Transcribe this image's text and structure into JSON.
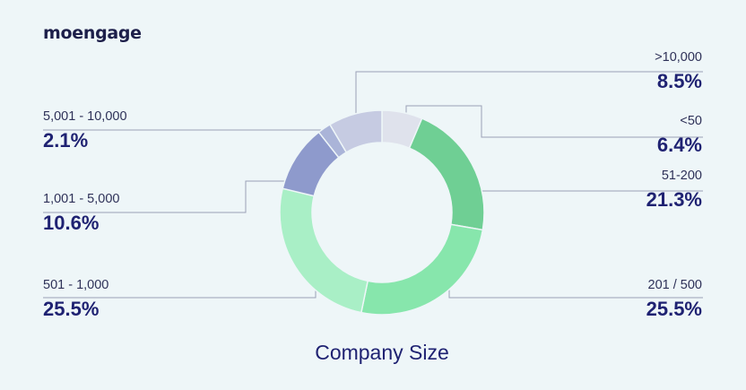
{
  "brand": {
    "logo_text": "moengage"
  },
  "chart_data": {
    "type": "pie",
    "variant": "donut",
    "title": "Company Size",
    "start": "12 o'clock, clockwise",
    "slices": [
      {
        "label": "<50",
        "value": 6.4,
        "value_label": "6.4%",
        "color": "#dfe2ec"
      },
      {
        "label": "51-200",
        "value": 21.3,
        "value_label": "21.3%",
        "color": "#6fcf94"
      },
      {
        "label": "201 / 500",
        "value": 25.5,
        "value_label": "25.5%",
        "color": "#87e6ac"
      },
      {
        "label": "501 - 1,000",
        "value": 25.5,
        "value_label": "25.5%",
        "color": "#a9efc6"
      },
      {
        "label": "1,001 - 5,000",
        "value": 10.6,
        "value_label": "10.6%",
        "color": "#8e9acc"
      },
      {
        "label": "5,001 - 10,000",
        "value": 2.1,
        "value_label": "2.1%",
        "color": "#aab4d8"
      },
      {
        "label": ">10,000",
        "value": 8.5,
        "value_label": "8.5%",
        "color": "#c6cbe2"
      }
    ]
  },
  "colors": {
    "background": "#eef6f8",
    "label_text": "#2e3158",
    "value_text": "#1f2272",
    "leader_line": "#9ba0b6"
  }
}
